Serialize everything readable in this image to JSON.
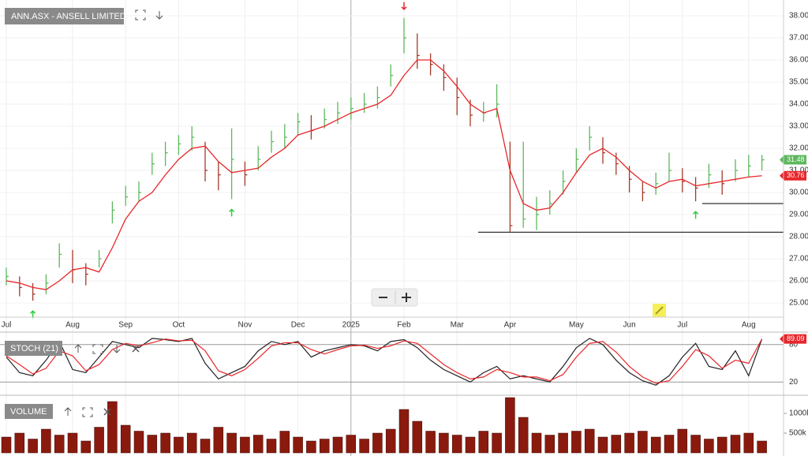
{
  "chart_data": [
    {
      "type": "ohlc",
      "title": "ANN.ASX - ANSELL LIMITED",
      "categories": [
        "Jul",
        null,
        null,
        null,
        null,
        "Aug",
        null,
        null,
        null,
        "Sep",
        null,
        null,
        null,
        "Oct",
        null,
        null,
        null,
        null,
        "Nov",
        null,
        null,
        null,
        "Dec",
        null,
        null,
        null,
        "2025",
        null,
        null,
        null,
        "Feb",
        null,
        null,
        null,
        "Mar",
        null,
        null,
        null,
        "Apr",
        null,
        null,
        null,
        null,
        "May",
        null,
        null,
        null,
        "Jun",
        null,
        null,
        null,
        "Jul",
        null,
        null,
        null,
        null,
        "Aug",
        null
      ],
      "close": [
        26.2,
        25.7,
        25.4,
        25.9,
        27.2,
        26.5,
        26.3,
        27.0,
        29.2,
        29.8,
        30.0,
        31.3,
        31.8,
        32.2,
        32.5,
        31.0,
        30.8,
        31.5,
        30.8,
        31.5,
        32.3,
        32.5,
        33.2,
        32.8,
        33.3,
        33.6,
        33.8,
        34.0,
        34.3,
        35.3,
        37.0,
        36.2,
        35.8,
        35.2,
        34.3,
        33.5,
        33.6,
        34.0,
        28.5,
        28.8,
        29.0,
        29.5,
        30.5,
        31.5,
        32.5,
        31.8,
        31.3,
        30.6,
        30.0,
        30.4,
        31.0,
        30.5,
        30.2,
        30.8,
        30.4,
        31.0,
        31.2,
        31.48
      ],
      "high": [
        26.6,
        26.2,
        25.9,
        26.3,
        27.7,
        27.4,
        26.8,
        27.4,
        29.6,
        30.3,
        30.5,
        31.8,
        32.3,
        32.6,
        33.0,
        32.3,
        31.4,
        32.9,
        31.4,
        32.1,
        32.8,
        33.1,
        33.6,
        33.5,
        33.8,
        34.1,
        34.3,
        34.5,
        34.8,
        35.8,
        37.9,
        37.2,
        36.3,
        35.8,
        35.2,
        34.2,
        34.1,
        34.9,
        32.3,
        32.3,
        29.8,
        30.1,
        31.0,
        32.0,
        33.0,
        32.5,
        31.8,
        31.2,
        30.5,
        30.9,
        31.8,
        31.1,
        30.7,
        31.3,
        31.0,
        31.5,
        31.7,
        31.7
      ],
      "low": [
        25.8,
        25.3,
        25.1,
        25.4,
        26.6,
        25.9,
        25.8,
        26.6,
        28.6,
        29.4,
        29.6,
        30.8,
        31.2,
        31.7,
        31.9,
        30.5,
        30.1,
        29.7,
        30.3,
        31.0,
        31.8,
        32.0,
        32.6,
        32.4,
        32.9,
        33.1,
        33.3,
        33.6,
        33.8,
        34.8,
        36.3,
        35.6,
        35.3,
        34.6,
        33.5,
        33.0,
        33.2,
        33.4,
        28.2,
        28.4,
        28.3,
        29.0,
        29.9,
        30.9,
        31.9,
        31.3,
        30.8,
        30.0,
        29.6,
        29.9,
        30.5,
        30.0,
        29.6,
        30.2,
        29.9,
        30.5,
        30.7,
        31.0
      ],
      "ma_values": [
        26.0,
        25.9,
        25.7,
        25.6,
        26.0,
        26.5,
        26.6,
        26.4,
        27.5,
        28.8,
        29.6,
        30.0,
        30.8,
        31.5,
        32.0,
        32.1,
        31.4,
        30.9,
        31.0,
        31.1,
        31.6,
        32.0,
        32.6,
        32.8,
        33.0,
        33.3,
        33.6,
        33.8,
        34.0,
        34.4,
        35.3,
        36.0,
        36.0,
        35.5,
        34.8,
        34.0,
        33.6,
        33.8,
        31.0,
        29.5,
        29.2,
        29.3,
        30.0,
        30.9,
        31.7,
        32.0,
        31.6,
        31.0,
        30.5,
        30.2,
        30.5,
        30.6,
        30.3,
        30.4,
        30.5,
        30.6,
        30.7,
        30.76
      ],
      "up_color": "#5cb85c",
      "down_color": "#a33a2a",
      "ma_color": "#e8262a",
      "levels": [
        28.2,
        29.5
      ],
      "level_color": "#333333",
      "ylim": [
        24.5,
        38.5
      ],
      "yticks": [
        {
          "value": 25,
          "label": "25.00"
        },
        {
          "value": 26,
          "label": "26.00"
        },
        {
          "value": 27,
          "label": "27.00"
        },
        {
          "value": 28,
          "label": "28.00"
        },
        {
          "value": 29,
          "label": "29.00"
        },
        {
          "value": 30,
          "label": "30.00"
        },
        {
          "value": 31,
          "label": "31.00"
        },
        {
          "value": 32,
          "label": "32.00"
        },
        {
          "value": 33,
          "label": "33.00"
        },
        {
          "value": 34,
          "label": "34.00"
        },
        {
          "value": 35,
          "label": "35.00"
        },
        {
          "value": 36,
          "label": "36.00"
        },
        {
          "value": 37,
          "label": "37.00"
        },
        {
          "value": 38,
          "label": "38.00"
        }
      ],
      "grid": true
    },
    {
      "type": "line",
      "title": "STOCH (21)",
      "k_values": [
        60,
        35,
        30,
        55,
        85,
        40,
        35,
        60,
        85,
        80,
        75,
        90,
        88,
        85,
        90,
        50,
        25,
        35,
        45,
        70,
        85,
        80,
        85,
        60,
        70,
        75,
        80,
        78,
        70,
        85,
        88,
        75,
        55,
        40,
        30,
        20,
        35,
        45,
        25,
        30,
        25,
        20,
        45,
        75,
        90,
        80,
        55,
        35,
        22,
        15,
        30,
        60,
        82,
        45,
        40,
        70,
        30,
        89
      ],
      "d_values": [
        62,
        48,
        33,
        42,
        70,
        62,
        38,
        48,
        72,
        82,
        78,
        83,
        89,
        86,
        87,
        70,
        38,
        30,
        40,
        58,
        78,
        83,
        83,
        72,
        65,
        72,
        78,
        79,
        74,
        78,
        86,
        82,
        65,
        48,
        35,
        25,
        28,
        40,
        35,
        28,
        28,
        22,
        32,
        60,
        82,
        85,
        68,
        45,
        28,
        18,
        22,
        45,
        72,
        62,
        42,
        55,
        50,
        89.09
      ],
      "k_color": "#222222",
      "d_color": "#e8262a",
      "ylim": [
        0,
        100
      ],
      "yticks": [
        20,
        80
      ]
    },
    {
      "type": "bar",
      "title": "VOLUME",
      "values": [
        400000,
        500000,
        350000,
        600000,
        450000,
        500000,
        300000,
        650000,
        1300000,
        700000,
        550000,
        450000,
        500000,
        400000,
        500000,
        350000,
        650000,
        500000,
        400000,
        450000,
        350000,
        550000,
        400000,
        300000,
        350000,
        400000,
        450000,
        350000,
        500000,
        600000,
        1100000,
        800000,
        550000,
        500000,
        450000,
        400000,
        550000,
        500000,
        1400000,
        900000,
        500000,
        450000,
        500000,
        550000,
        600000,
        400000,
        450000,
        500000,
        550000,
        400000,
        450000,
        600000,
        450000,
        350000,
        400000,
        450000,
        500000,
        300000
      ],
      "color": "#8b1a0e",
      "ylim": [
        0,
        1400000
      ],
      "yticks": [
        {
          "value": 500000,
          "label": "500k"
        },
        {
          "value": 1000000,
          "label": "1000k"
        }
      ]
    }
  ]
}
